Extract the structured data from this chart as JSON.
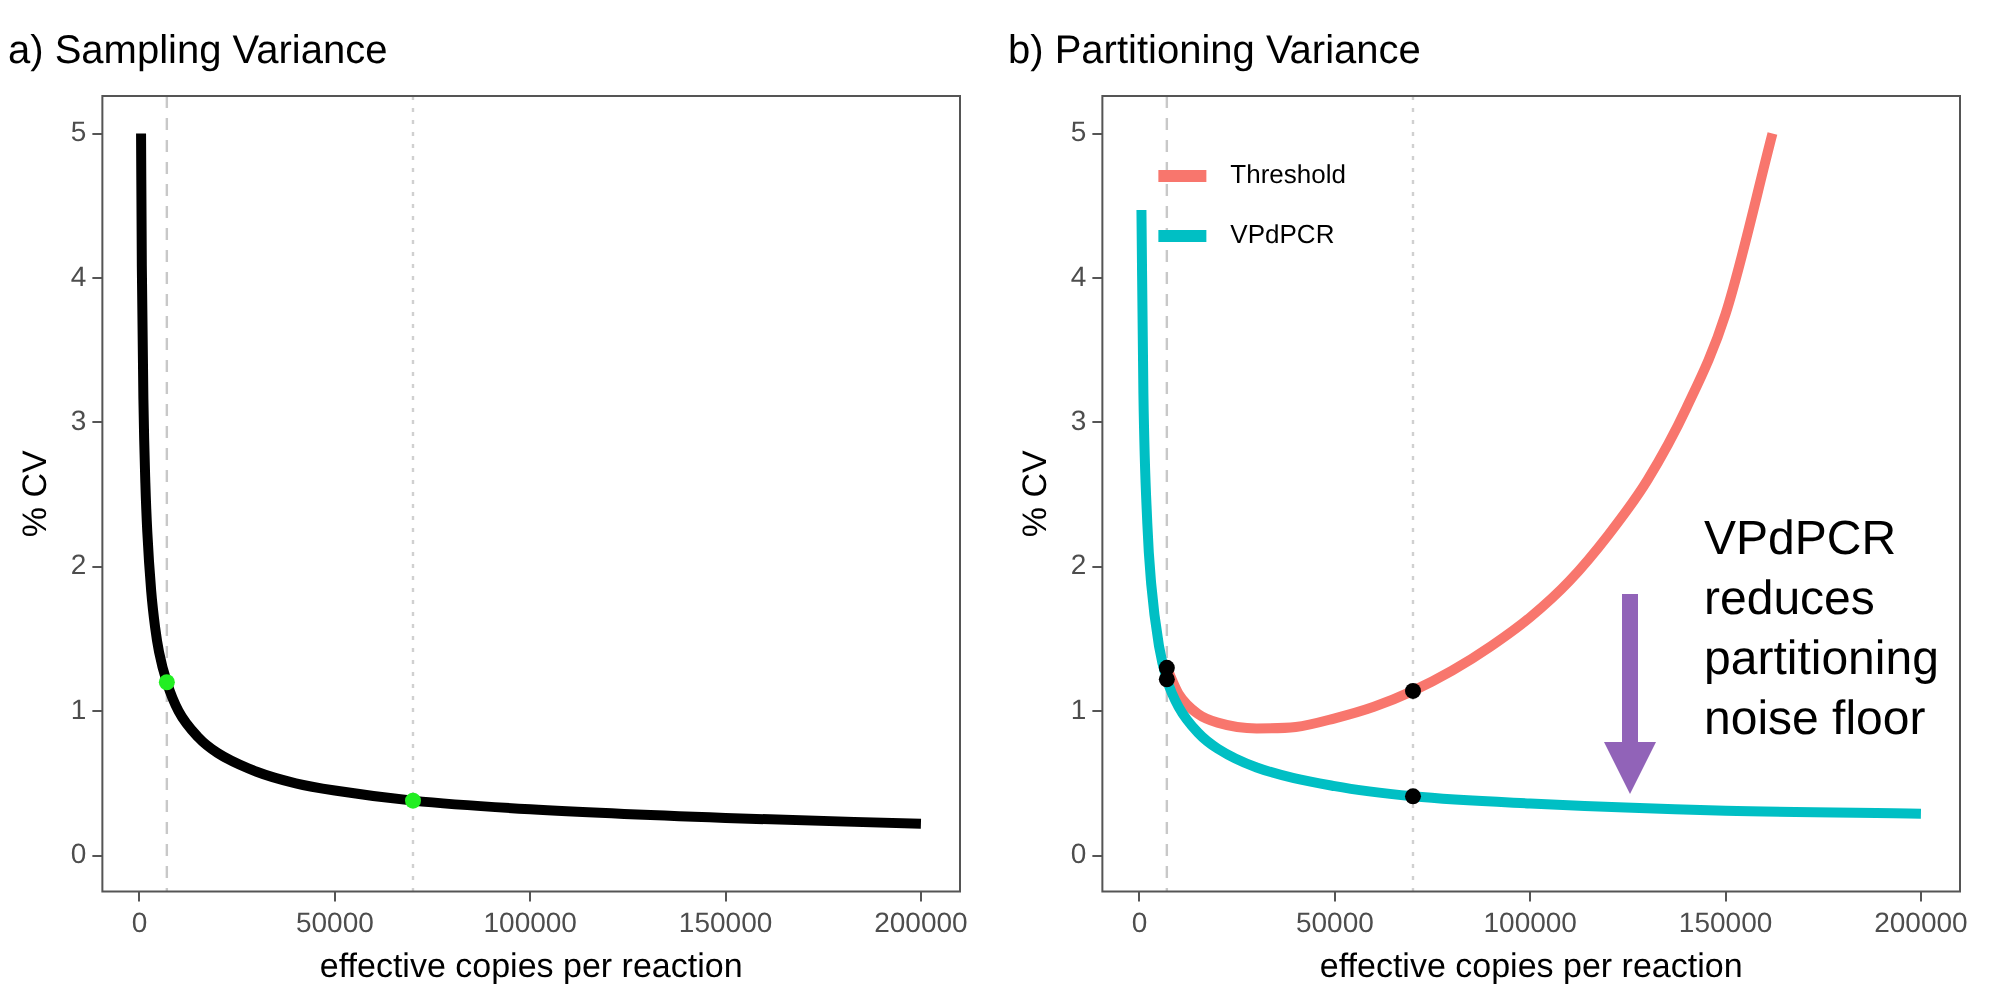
{
  "chart_data": [
    {
      "type": "line",
      "title": "a) Sampling Variance",
      "xlabel": "effective copies per reaction",
      "ylabel": "% CV",
      "xlim": [
        -9500,
        210000
      ],
      "ylim": [
        -0.25,
        5.26
      ],
      "xticks": [
        0,
        50000,
        100000,
        150000,
        200000
      ],
      "yticks": [
        0,
        1,
        2,
        3,
        4,
        5
      ],
      "grid": false,
      "legend": false,
      "marker": "none",
      "series": [
        {
          "color": "#000000",
          "x": [
            400,
            600,
            1000,
            1500,
            2000,
            3000,
            4000,
            5000,
            7000,
            10000,
            15000,
            20000,
            30000,
            40000,
            50000,
            70000,
            100000,
            150000,
            200000
          ],
          "values": [
            5.0,
            4.08,
            3.16,
            2.58,
            2.24,
            1.83,
            1.58,
            1.41,
            1.2,
            1.0,
            0.82,
            0.71,
            0.58,
            0.5,
            0.45,
            0.38,
            0.32,
            0.26,
            0.22
          ]
        },
        {
          "type": "scatter",
          "marker": "circle",
          "color": "#22ee22",
          "x": [
            7000,
            70000
          ],
          "values": [
            1.2,
            0.38
          ]
        }
      ],
      "ref_lines": [
        {
          "axis": "x",
          "value": 7000,
          "color": "#c8c8c8",
          "line_style": "dashed"
        },
        {
          "axis": "x",
          "value": 70000,
          "color": "#d0d0d0",
          "line_style": "dotted"
        }
      ]
    },
    {
      "type": "line",
      "title": "b) Partitioning Variance",
      "xlabel": "effective copies per reaction",
      "ylabel": "% CV",
      "xlim": [
        -9500,
        210000
      ],
      "ylim": [
        -0.25,
        5.26
      ],
      "xticks": [
        0,
        50000,
        100000,
        150000,
        200000
      ],
      "yticks": [
        0,
        1,
        2,
        3,
        4,
        5
      ],
      "grid": false,
      "legend": "top left",
      "marker": "none",
      "series": [
        {
          "name": "Threshold",
          "color": "#f8766d",
          "x": [
            7000,
            10000,
            15000,
            20000,
            30000,
            40000,
            50000,
            60000,
            70000,
            80000,
            90000,
            100000,
            110000,
            120000,
            130000,
            140000,
            150000,
            162000
          ],
          "values": [
            1.3,
            1.12,
            0.98,
            0.92,
            0.88,
            0.89,
            0.95,
            1.03,
            1.14,
            1.28,
            1.45,
            1.65,
            1.9,
            2.22,
            2.6,
            3.1,
            3.75,
            5.0
          ]
        },
        {
          "name": "VPdPCR",
          "color": "#00bfc4",
          "x": [
            500,
            1000,
            2000,
            3000,
            5000,
            7000,
            10000,
            15000,
            20000,
            30000,
            50000,
            70000,
            100000,
            150000,
            200000
          ],
          "values": [
            4.47,
            3.2,
            2.3,
            1.88,
            1.45,
            1.22,
            1.03,
            0.85,
            0.74,
            0.61,
            0.48,
            0.41,
            0.36,
            0.31,
            0.29
          ]
        },
        {
          "type": "scatter",
          "marker": "circle",
          "color": "#000000",
          "x": [
            7000,
            7000,
            70000,
            70000
          ],
          "values": [
            1.3,
            1.22,
            1.14,
            0.41
          ]
        }
      ],
      "ref_lines": [
        {
          "axis": "x",
          "value": 7000,
          "color": "#c8c8c8",
          "line_style": "dashed"
        },
        {
          "axis": "x",
          "value": 70000,
          "color": "#d0d0d0",
          "line_style": "dotted"
        }
      ],
      "annotations": [
        "VPdPCR reduces partitioning noise floor"
      ]
    }
  ]
}
